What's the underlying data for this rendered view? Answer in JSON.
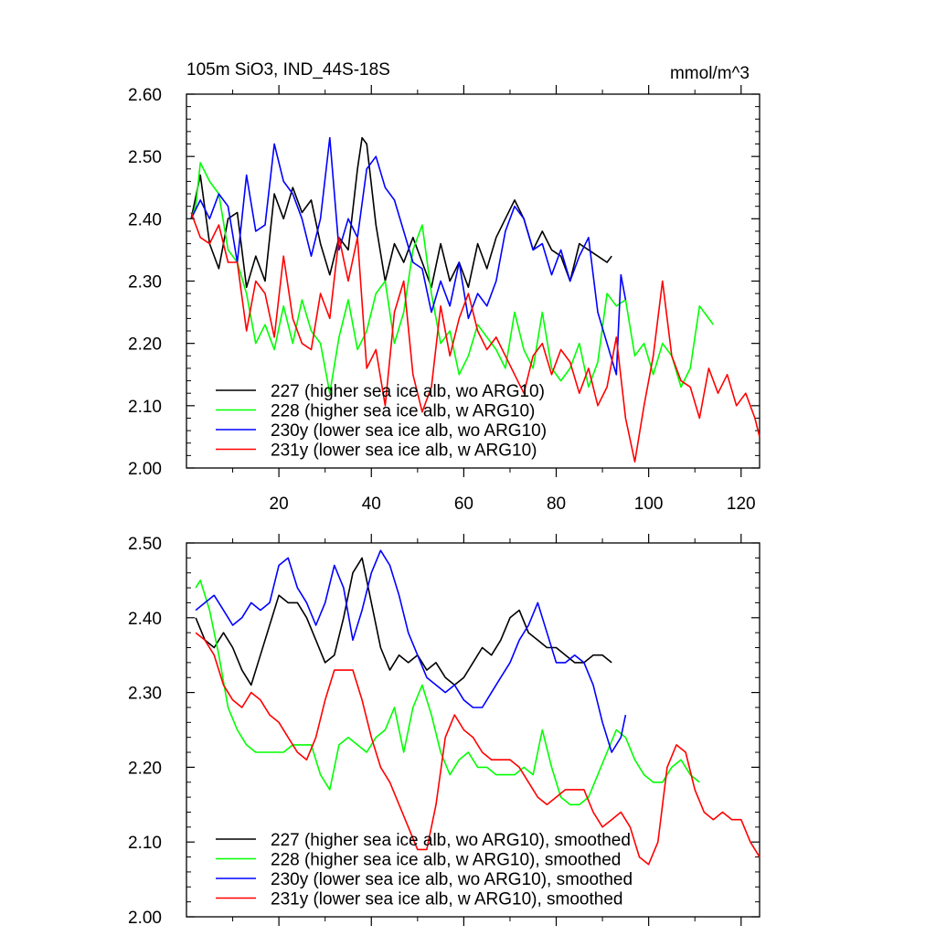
{
  "figure": {
    "title_left": "105m SiO3, IND_44S-18S",
    "title_right": "mmol/m^3"
  },
  "chart_data": [
    {
      "type": "line",
      "title": "105m SiO3, IND_44S-18S",
      "units": "mmol/m^3",
      "xlabel": "",
      "ylabel": "",
      "xlim": [
        0,
        124
      ],
      "ylim": [
        2.0,
        2.6
      ],
      "xticks": [
        20,
        40,
        60,
        80,
        100,
        120
      ],
      "xtick_labels": [
        "20",
        "40",
        "60",
        "80",
        "100",
        "120"
      ],
      "yticks": [
        2.0,
        2.1,
        2.2,
        2.3,
        2.4,
        2.5,
        2.6
      ],
      "ytick_labels": [
        "2.00",
        "2.10",
        "2.20",
        "2.30",
        "2.40",
        "2.50",
        "2.60"
      ],
      "legend_position": "bottom-left",
      "grid": false,
      "series": [
        {
          "name": "227 (higher sea ice alb, wo ARG10)",
          "color": "#000000",
          "x": [
            1,
            3,
            5,
            7,
            9,
            11,
            13,
            15,
            17,
            19,
            21,
            23,
            25,
            27,
            29,
            31,
            33,
            35,
            37,
            38,
            39,
            41,
            43,
            45,
            47,
            49,
            51,
            53,
            55,
            57,
            59,
            61,
            63,
            65,
            67,
            69,
            71,
            73,
            75,
            77,
            79,
            81,
            83,
            85,
            87,
            89,
            91,
            92
          ],
          "y": [
            2.4,
            2.47,
            2.36,
            2.32,
            2.4,
            2.41,
            2.29,
            2.34,
            2.3,
            2.44,
            2.4,
            2.45,
            2.41,
            2.43,
            2.36,
            2.31,
            2.37,
            2.35,
            2.48,
            2.53,
            2.52,
            2.39,
            2.3,
            2.36,
            2.33,
            2.37,
            2.33,
            2.29,
            2.36,
            2.3,
            2.33,
            2.29,
            2.36,
            2.32,
            2.37,
            2.4,
            2.43,
            2.4,
            2.35,
            2.38,
            2.35,
            2.34,
            2.3,
            2.36,
            2.35,
            2.34,
            2.33,
            2.34
          ]
        },
        {
          "name": "228 (higher sea ice alb, w ARG10)",
          "color": "#00ff00",
          "x": [
            1,
            2,
            3,
            5,
            7,
            9,
            11,
            13,
            15,
            17,
            19,
            21,
            23,
            25,
            27,
            29,
            31,
            33,
            35,
            37,
            39,
            41,
            43,
            45,
            47,
            49,
            51,
            53,
            55,
            57,
            59,
            61,
            63,
            65,
            67,
            69,
            71,
            73,
            75,
            77,
            79,
            81,
            83,
            85,
            87,
            89,
            91,
            93,
            95,
            97,
            99,
            101,
            103,
            105,
            107,
            109,
            111,
            113,
            114
          ],
          "y": [
            2.4,
            2.42,
            2.49,
            2.46,
            2.44,
            2.35,
            2.33,
            2.28,
            2.2,
            2.23,
            2.19,
            2.26,
            2.2,
            2.27,
            2.22,
            2.2,
            2.12,
            2.21,
            2.27,
            2.19,
            2.22,
            2.28,
            2.3,
            2.2,
            2.25,
            2.35,
            2.39,
            2.28,
            2.2,
            2.22,
            2.15,
            2.18,
            2.23,
            2.21,
            2.19,
            2.16,
            2.25,
            2.19,
            2.16,
            2.25,
            2.16,
            2.14,
            2.16,
            2.2,
            2.13,
            2.17,
            2.28,
            2.26,
            2.27,
            2.18,
            2.2,
            2.15,
            2.2,
            2.18,
            2.13,
            2.16,
            2.26,
            2.24,
            2.23
          ]
        },
        {
          "name": "230y (lower sea ice alb, wo ARG10)",
          "color": "#0000ff",
          "x": [
            1,
            3,
            5,
            7,
            9,
            11,
            13,
            15,
            17,
            19,
            21,
            23,
            25,
            27,
            29,
            31,
            33,
            35,
            37,
            39,
            41,
            43,
            45,
            47,
            49,
            51,
            53,
            55,
            57,
            59,
            61,
            63,
            65,
            67,
            69,
            71,
            73,
            75,
            77,
            79,
            81,
            83,
            85,
            87,
            89,
            91,
            93,
            94,
            95
          ],
          "y": [
            2.4,
            2.43,
            2.4,
            2.44,
            2.42,
            2.33,
            2.47,
            2.38,
            2.39,
            2.52,
            2.46,
            2.44,
            2.4,
            2.34,
            2.4,
            2.53,
            2.35,
            2.4,
            2.37,
            2.48,
            2.5,
            2.45,
            2.43,
            2.38,
            2.33,
            2.32,
            2.25,
            2.3,
            2.26,
            2.33,
            2.24,
            2.28,
            2.26,
            2.3,
            2.38,
            2.42,
            2.4,
            2.35,
            2.36,
            2.31,
            2.35,
            2.3,
            2.34,
            2.37,
            2.25,
            2.2,
            2.15,
            2.31,
            2.27
          ]
        },
        {
          "name": "231y (lower sea ice alb, w ARG10)",
          "color": "#ff0000",
          "x": [
            1,
            3,
            5,
            7,
            9,
            11,
            13,
            15,
            17,
            19,
            21,
            23,
            25,
            27,
            29,
            31,
            33,
            35,
            37,
            39,
            41,
            43,
            45,
            47,
            49,
            51,
            53,
            55,
            57,
            59,
            61,
            63,
            65,
            67,
            69,
            71,
            73,
            75,
            77,
            79,
            81,
            83,
            85,
            87,
            89,
            91,
            93,
            95,
            97,
            99,
            101,
            103,
            105,
            107,
            109,
            111,
            113,
            115,
            117,
            119,
            121,
            123,
            124
          ],
          "y": [
            2.41,
            2.37,
            2.36,
            2.39,
            2.33,
            2.33,
            2.22,
            2.3,
            2.28,
            2.21,
            2.34,
            2.24,
            2.2,
            2.19,
            2.28,
            2.24,
            2.37,
            2.3,
            2.37,
            2.16,
            2.19,
            2.1,
            2.25,
            2.3,
            2.15,
            2.09,
            2.13,
            2.26,
            2.18,
            2.24,
            2.28,
            2.22,
            2.19,
            2.21,
            2.18,
            2.15,
            2.12,
            2.18,
            2.2,
            2.15,
            2.19,
            2.17,
            2.12,
            2.16,
            2.1,
            2.13,
            2.21,
            2.08,
            2.01,
            2.1,
            2.18,
            2.3,
            2.18,
            2.14,
            2.13,
            2.08,
            2.16,
            2.12,
            2.15,
            2.1,
            2.12,
            2.08,
            2.05
          ]
        }
      ]
    },
    {
      "type": "line",
      "title": "",
      "xlabel": "",
      "ylabel": "",
      "xlim": [
        0,
        124
      ],
      "ylim": [
        2.0,
        2.5
      ],
      "xticks": [
        20,
        40,
        60,
        80,
        100,
        120
      ],
      "xtick_labels": [],
      "yticks": [
        2.0,
        2.1,
        2.2,
        2.3,
        2.4,
        2.5
      ],
      "ytick_labels": [
        "2.00",
        "2.10",
        "2.20",
        "2.30",
        "2.40",
        "2.50"
      ],
      "legend_position": "bottom-left",
      "grid": false,
      "series": [
        {
          "name": "227 (higher sea ice alb, wo ARG10), smoothed",
          "color": "#000000",
          "x": [
            2,
            4,
            6,
            8,
            10,
            12,
            14,
            16,
            18,
            20,
            22,
            24,
            26,
            28,
            30,
            32,
            34,
            36,
            38,
            40,
            42,
            44,
            46,
            48,
            50,
            52,
            54,
            56,
            58,
            60,
            62,
            64,
            66,
            68,
            70,
            72,
            74,
            76,
            78,
            80,
            82,
            84,
            86,
            88,
            90,
            92
          ],
          "y": [
            2.4,
            2.37,
            2.36,
            2.38,
            2.36,
            2.33,
            2.31,
            2.35,
            2.39,
            2.43,
            2.42,
            2.42,
            2.4,
            2.37,
            2.34,
            2.35,
            2.4,
            2.46,
            2.48,
            2.42,
            2.36,
            2.33,
            2.35,
            2.34,
            2.35,
            2.33,
            2.34,
            2.32,
            2.31,
            2.32,
            2.34,
            2.36,
            2.35,
            2.37,
            2.4,
            2.41,
            2.38,
            2.37,
            2.36,
            2.36,
            2.35,
            2.34,
            2.34,
            2.35,
            2.35,
            2.34
          ]
        },
        {
          "name": "228 (higher sea ice alb, w ARG10), smoothed",
          "color": "#00ff00",
          "x": [
            2,
            3,
            5,
            7,
            9,
            11,
            13,
            15,
            17,
            19,
            21,
            23,
            25,
            27,
            29,
            31,
            33,
            35,
            37,
            39,
            41,
            43,
            45,
            47,
            49,
            51,
            53,
            55,
            57,
            59,
            61,
            63,
            65,
            67,
            69,
            71,
            73,
            75,
            77,
            79,
            81,
            83,
            85,
            87,
            89,
            91,
            93,
            95,
            97,
            99,
            101,
            103,
            105,
            107,
            109,
            111
          ],
          "y": [
            2.44,
            2.45,
            2.41,
            2.35,
            2.28,
            2.25,
            2.23,
            2.22,
            2.22,
            2.22,
            2.22,
            2.23,
            2.23,
            2.23,
            2.19,
            2.17,
            2.23,
            2.24,
            2.23,
            2.22,
            2.24,
            2.25,
            2.28,
            2.22,
            2.28,
            2.31,
            2.27,
            2.22,
            2.19,
            2.21,
            2.22,
            2.2,
            2.2,
            2.19,
            2.19,
            2.19,
            2.2,
            2.19,
            2.25,
            2.2,
            2.16,
            2.15,
            2.15,
            2.16,
            2.19,
            2.22,
            2.25,
            2.24,
            2.21,
            2.19,
            2.18,
            2.18,
            2.2,
            2.21,
            2.19,
            2.18
          ]
        },
        {
          "name": "230y (lower sea ice alb, wo ARG10), smoothed",
          "color": "#0000ff",
          "x": [
            2,
            4,
            6,
            8,
            10,
            12,
            14,
            16,
            18,
            20,
            22,
            24,
            26,
            28,
            30,
            32,
            34,
            36,
            38,
            40,
            42,
            44,
            46,
            48,
            50,
            52,
            54,
            56,
            58,
            60,
            62,
            64,
            66,
            68,
            70,
            72,
            74,
            76,
            78,
            80,
            82,
            84,
            86,
            88,
            90,
            92,
            94,
            95
          ],
          "y": [
            2.41,
            2.42,
            2.43,
            2.41,
            2.39,
            2.4,
            2.42,
            2.41,
            2.42,
            2.47,
            2.48,
            2.44,
            2.42,
            2.39,
            2.42,
            2.47,
            2.44,
            2.37,
            2.41,
            2.46,
            2.49,
            2.47,
            2.43,
            2.38,
            2.35,
            2.32,
            2.31,
            2.3,
            2.31,
            2.29,
            2.28,
            2.28,
            2.3,
            2.32,
            2.34,
            2.37,
            2.39,
            2.42,
            2.38,
            2.34,
            2.34,
            2.35,
            2.34,
            2.31,
            2.26,
            2.22,
            2.24,
            2.27
          ]
        },
        {
          "name": "231y (lower sea ice alb, w ARG10), smoothed",
          "color": "#ff0000",
          "x": [
            2,
            4,
            6,
            8,
            10,
            12,
            14,
            16,
            18,
            20,
            22,
            24,
            26,
            28,
            30,
            32,
            34,
            36,
            38,
            40,
            42,
            44,
            46,
            48,
            50,
            52,
            54,
            56,
            58,
            60,
            62,
            64,
            66,
            68,
            70,
            72,
            74,
            76,
            78,
            80,
            82,
            84,
            86,
            88,
            90,
            92,
            94,
            96,
            98,
            100,
            102,
            104,
            106,
            108,
            110,
            112,
            114,
            116,
            118,
            120,
            122,
            124
          ],
          "y": [
            2.38,
            2.37,
            2.35,
            2.31,
            2.29,
            2.28,
            2.3,
            2.29,
            2.27,
            2.26,
            2.24,
            2.22,
            2.21,
            2.24,
            2.29,
            2.33,
            2.33,
            2.33,
            2.29,
            2.24,
            2.2,
            2.18,
            2.15,
            2.12,
            2.09,
            2.09,
            2.15,
            2.24,
            2.27,
            2.25,
            2.24,
            2.22,
            2.21,
            2.21,
            2.21,
            2.2,
            2.18,
            2.16,
            2.15,
            2.16,
            2.17,
            2.17,
            2.17,
            2.14,
            2.12,
            2.13,
            2.14,
            2.12,
            2.08,
            2.07,
            2.1,
            2.2,
            2.23,
            2.22,
            2.17,
            2.14,
            2.13,
            2.14,
            2.13,
            2.13,
            2.1,
            2.08
          ]
        }
      ]
    }
  ]
}
